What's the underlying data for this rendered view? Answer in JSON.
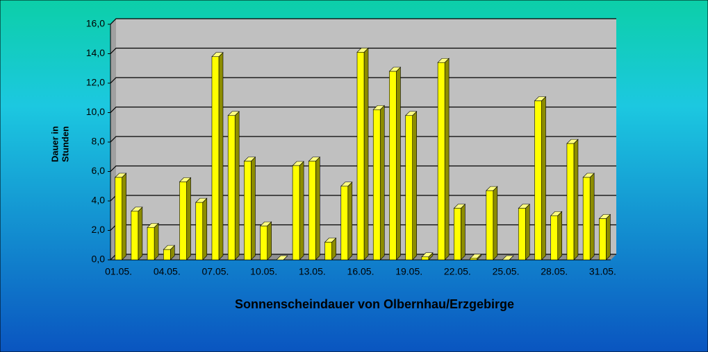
{
  "chart_data": {
    "type": "bar3d",
    "title": "Sonnenscheindauer von Olbernhau/Erzgebirge",
    "ylabel": [
      "Dauer in",
      "Stunden"
    ],
    "categories": [
      "01.05.",
      null,
      null,
      "04.05.",
      null,
      null,
      "07.05.",
      null,
      null,
      "10.05.",
      null,
      null,
      "13.05.",
      null,
      null,
      "16.05.",
      null,
      null,
      "19.05.",
      null,
      null,
      "22.05.",
      null,
      null,
      "25.05.",
      null,
      null,
      "28.05.",
      null,
      null,
      "31.05."
    ],
    "values": [
      5.6,
      3.3,
      2.2,
      0.7,
      5.3,
      3.9,
      13.8,
      9.8,
      6.7,
      2.3,
      0,
      6.4,
      6.7,
      1.2,
      5.0,
      14.1,
      10.2,
      12.8,
      9.8,
      0.2,
      13.4,
      3.5,
      0.1,
      4.7,
      0,
      3.5,
      10.8,
      3.0,
      7.9,
      5.6,
      2.8
    ],
    "color": "#ffff00",
    "ylim": [
      0,
      16
    ],
    "yticks": [
      {
        "value": 0,
        "label": "0,0"
      },
      {
        "value": 2,
        "label": "2,0"
      },
      {
        "value": 4,
        "label": "4,0"
      },
      {
        "value": 6,
        "label": "6,0"
      },
      {
        "value": 8,
        "label": "8,0"
      },
      {
        "value": 10,
        "label": "10,0"
      },
      {
        "value": 12,
        "label": "12,0"
      },
      {
        "value": 14,
        "label": "14,0"
      },
      {
        "value": 16,
        "label": "16,0"
      }
    ],
    "grid": true
  }
}
